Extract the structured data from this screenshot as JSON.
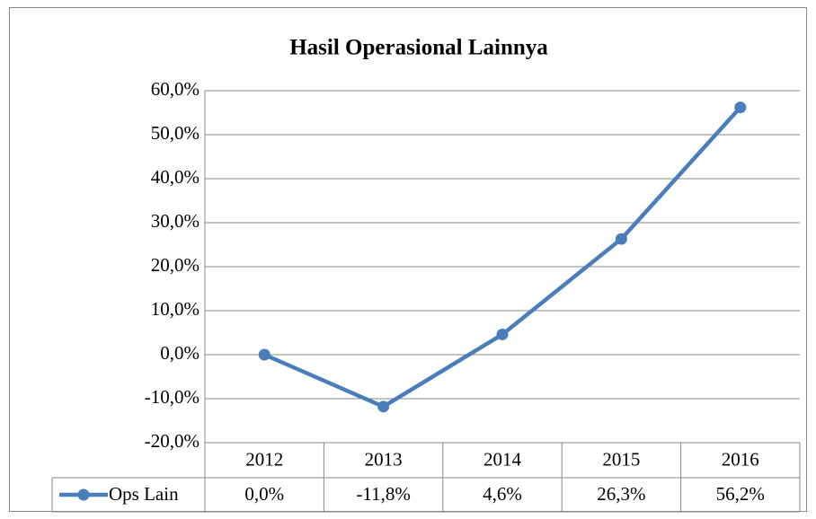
{
  "chart_data": {
    "type": "line",
    "title": "Hasil Operasional Lainnya",
    "categories": [
      "2012",
      "2013",
      "2014",
      "2015",
      "2016"
    ],
    "series": [
      {
        "name": "Ops Lain",
        "color": "#4a7ebb",
        "values": [
          0,
          -11.8,
          4.6,
          26.3,
          56.2
        ],
        "value_labels": [
          "0,0%",
          "-11,8%",
          "4,6%",
          "26,3%",
          "56,2%"
        ]
      }
    ],
    "ylim": [
      -20,
      60
    ],
    "yticks": [
      {
        "value": -20,
        "label": "-20,0%"
      },
      {
        "value": -10,
        "label": "-10,0%"
      },
      {
        "value": 0,
        "label": "0,0%"
      },
      {
        "value": 10,
        "label": "10,0%"
      },
      {
        "value": 20,
        "label": "20,0%"
      },
      {
        "value": 30,
        "label": "30,0%"
      },
      {
        "value": 40,
        "label": "40,0%"
      },
      {
        "value": 50,
        "label": "50,0%"
      },
      {
        "value": 60,
        "label": "60,0%"
      }
    ],
    "grid": true,
    "data_table": true
  }
}
